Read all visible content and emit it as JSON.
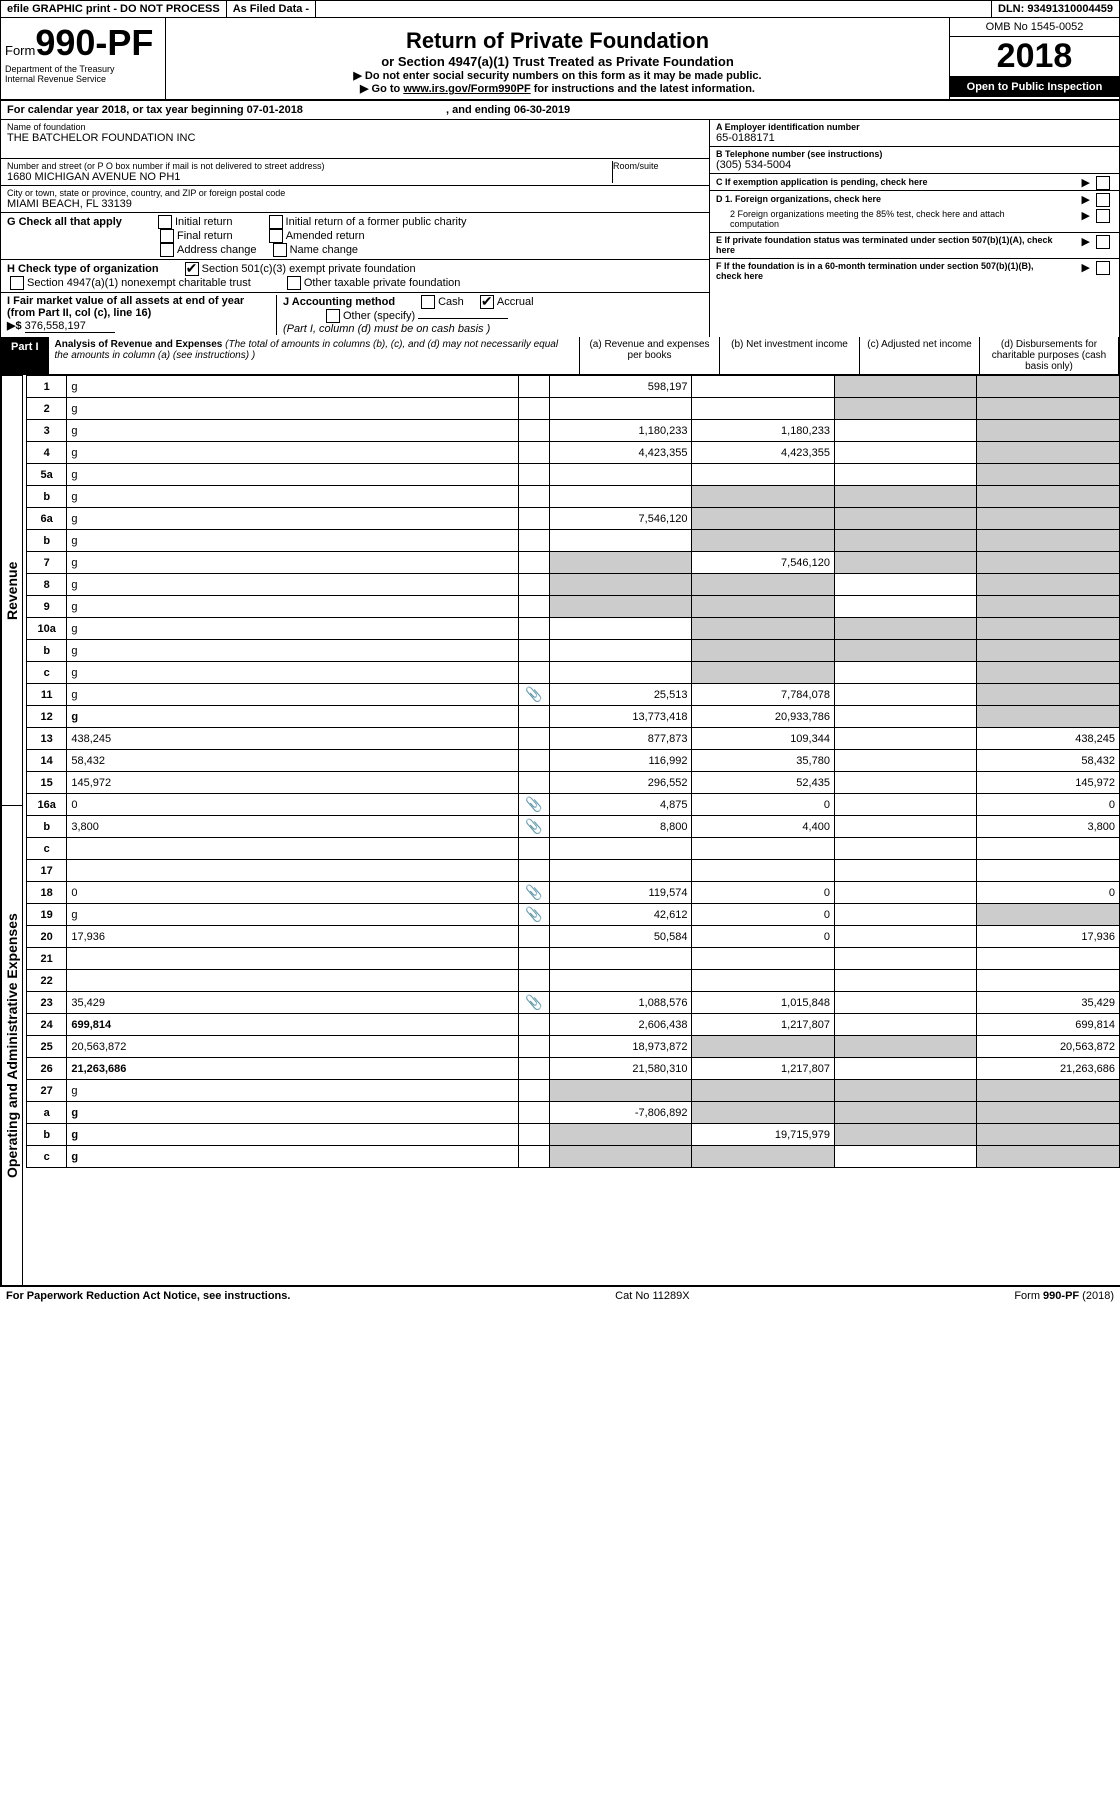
{
  "header": {
    "efile": "efile GRAPHIC print - DO NOT PROCESS",
    "asfiled": "As Filed Data -",
    "dln": "DLN: 93491310004459",
    "formword": "Form",
    "formno": "990-PF",
    "dept": "Department of the Treasury",
    "irs": "Internal Revenue Service",
    "title": "Return of Private Foundation",
    "sub": "or Section 4947(a)(1) Trust Treated as Private Foundation",
    "warn": "▶ Do not enter social security numbers on this form as it may be made public.",
    "goto_pre": "▶ Go to ",
    "goto_link": "www.irs.gov/Form990PF",
    "goto_post": " for instructions and the latest information.",
    "omb": "OMB No 1545-0052",
    "year": "2018",
    "openpub": "Open to Public Inspection"
  },
  "cal": {
    "pre": "For calendar year 2018, or tax year beginning ",
    "begin": "07-01-2018",
    "mid": ", and ending ",
    "end": "06-30-2019"
  },
  "name": {
    "lbl": "Name of foundation",
    "val": "THE BATCHELOR FOUNDATION INC"
  },
  "ein": {
    "lbl": "A Employer identification number",
    "val": "65-0188171"
  },
  "addr": {
    "lbl": "Number and street (or P O  box number if mail is not delivered to street address)",
    "room": "Room/suite",
    "val": "1680 MICHIGAN AVENUE NO PH1"
  },
  "tel": {
    "lbl": "B Telephone number (see instructions)",
    "val": "(305) 534-5004"
  },
  "city": {
    "lbl": "City or town, state or province, country, and ZIP or foreign postal code",
    "val": "MIAMI BEACH, FL  33139"
  },
  "c": {
    "lbl": "C If exemption application is pending, check here"
  },
  "g": {
    "lbl": "G Check all that apply",
    "opts": [
      "Initial return",
      "Initial return of a former public charity",
      "Final return",
      "Amended return",
      "Address change",
      "Name change"
    ]
  },
  "d": {
    "d1": "D 1. Foreign organizations, check here",
    "d2": "2 Foreign organizations meeting the 85% test, check here and attach computation"
  },
  "e": {
    "lbl": "E If private foundation status was terminated under section 507(b)(1)(A), check here"
  },
  "h": {
    "lbl": "H Check type of organization",
    "o1": "Section 501(c)(3) exempt private foundation",
    "o2": "Section 4947(a)(1) nonexempt charitable trust",
    "o3": "Other taxable private foundation"
  },
  "i": {
    "lbl": "I Fair market value of all assets at end of year (from Part II, col  (c), line 16)",
    "arrow": "▶$",
    "val": "376,558,197"
  },
  "j": {
    "lbl": "J Accounting method",
    "cash": "Cash",
    "accrual": "Accrual",
    "other": "Other (specify)",
    "note": "(Part I, column (d) must be on cash basis )"
  },
  "f": {
    "lbl": "F If the foundation is in a 60-month termination under section 507(b)(1)(B), check here"
  },
  "part1": {
    "label": "Part I",
    "title": "Analysis of Revenue and Expenses",
    "desc": "(The total of amounts in columns (b), (c), and (d) may not necessarily equal the amounts in column (a) (see instructions) )",
    "cols": {
      "a": "(a) Revenue and expenses per books",
      "b": "(b) Net investment income",
      "c": "(c) Adjusted net income",
      "d": "(d) Disbursements for charitable purposes (cash basis only)"
    }
  },
  "vert": {
    "rev": "Revenue",
    "exp": "Operating and Administrative Expenses"
  },
  "rows": [
    {
      "n": "1",
      "d": "g",
      "a": "598,197",
      "b": "",
      "c": "g"
    },
    {
      "n": "2",
      "d": "g",
      "a": "",
      "b": "",
      "c": "g"
    },
    {
      "n": "3",
      "d": "g",
      "a": "1,180,233",
      "b": "1,180,233",
      "c": ""
    },
    {
      "n": "4",
      "d": "g",
      "a": "4,423,355",
      "b": "4,423,355",
      "c": ""
    },
    {
      "n": "5a",
      "d": "g",
      "a": "",
      "b": "",
      "c": ""
    },
    {
      "n": "b",
      "d": "g",
      "a": "",
      "b": "g",
      "c": "g"
    },
    {
      "n": "6a",
      "d": "g",
      "a": "7,546,120",
      "b": "g",
      "c": "g"
    },
    {
      "n": "b",
      "d": "g",
      "a": "",
      "b": "g",
      "c": "g"
    },
    {
      "n": "7",
      "d": "g",
      "a": "g",
      "b": "7,546,120",
      "c": "g"
    },
    {
      "n": "8",
      "d": "g",
      "a": "g",
      "b": "g",
      "c": ""
    },
    {
      "n": "9",
      "d": "g",
      "a": "g",
      "b": "g",
      "c": ""
    },
    {
      "n": "10a",
      "d": "g",
      "a": "",
      "b": "g",
      "c": "g"
    },
    {
      "n": "b",
      "d": "g",
      "a": "",
      "b": "g",
      "c": "g"
    },
    {
      "n": "c",
      "d": "g",
      "a": "",
      "b": "g",
      "c": ""
    },
    {
      "n": "11",
      "d": "g",
      "sch": true,
      "a": "25,513",
      "b": "7,784,078",
      "c": ""
    },
    {
      "n": "12",
      "d": "g",
      "bold": true,
      "a": "13,773,418",
      "b": "20,933,786",
      "c": ""
    },
    {
      "n": "13",
      "d": "438,245",
      "a": "877,873",
      "b": "109,344",
      "c": ""
    },
    {
      "n": "14",
      "d": "58,432",
      "a": "116,992",
      "b": "35,780",
      "c": ""
    },
    {
      "n": "15",
      "d": "145,972",
      "a": "296,552",
      "b": "52,435",
      "c": ""
    },
    {
      "n": "16a",
      "d": "0",
      "sch": true,
      "a": "4,875",
      "b": "0",
      "c": ""
    },
    {
      "n": "b",
      "d": "3,800",
      "sch": true,
      "a": "8,800",
      "b": "4,400",
      "c": ""
    },
    {
      "n": "c",
      "d": "",
      "a": "",
      "b": "",
      "c": ""
    },
    {
      "n": "17",
      "d": "",
      "a": "",
      "b": "",
      "c": ""
    },
    {
      "n": "18",
      "d": "0",
      "sch": true,
      "a": "119,574",
      "b": "0",
      "c": ""
    },
    {
      "n": "19",
      "d": "g",
      "sch": true,
      "a": "42,612",
      "b": "0",
      "c": ""
    },
    {
      "n": "20",
      "d": "17,936",
      "a": "50,584",
      "b": "0",
      "c": ""
    },
    {
      "n": "21",
      "d": "",
      "a": "",
      "b": "",
      "c": ""
    },
    {
      "n": "22",
      "d": "",
      "a": "",
      "b": "",
      "c": ""
    },
    {
      "n": "23",
      "d": "35,429",
      "sch": true,
      "a": "1,088,576",
      "b": "1,015,848",
      "c": ""
    },
    {
      "n": "24",
      "d": "699,814",
      "bold": true,
      "a": "2,606,438",
      "b": "1,217,807",
      "c": ""
    },
    {
      "n": "25",
      "d": "20,563,872",
      "a": "18,973,872",
      "b": "g",
      "c": "g"
    },
    {
      "n": "26",
      "d": "21,263,686",
      "bold": true,
      "a": "21,580,310",
      "b": "1,217,807",
      "c": ""
    },
    {
      "n": "27",
      "d": "g",
      "a": "g",
      "b": "g",
      "c": "g"
    },
    {
      "n": "a",
      "d": "g",
      "bold": true,
      "a": "-7,806,892",
      "b": "g",
      "c": "g"
    },
    {
      "n": "b",
      "d": "g",
      "bold": true,
      "a": "g",
      "b": "19,715,979",
      "c": "g"
    },
    {
      "n": "c",
      "d": "g",
      "bold": true,
      "a": "g",
      "b": "g",
      "c": ""
    }
  ],
  "footer": {
    "left": "For Paperwork Reduction Act Notice, see instructions.",
    "mid": "Cat  No  11289X",
    "right": "Form 990-PF (2018)"
  }
}
